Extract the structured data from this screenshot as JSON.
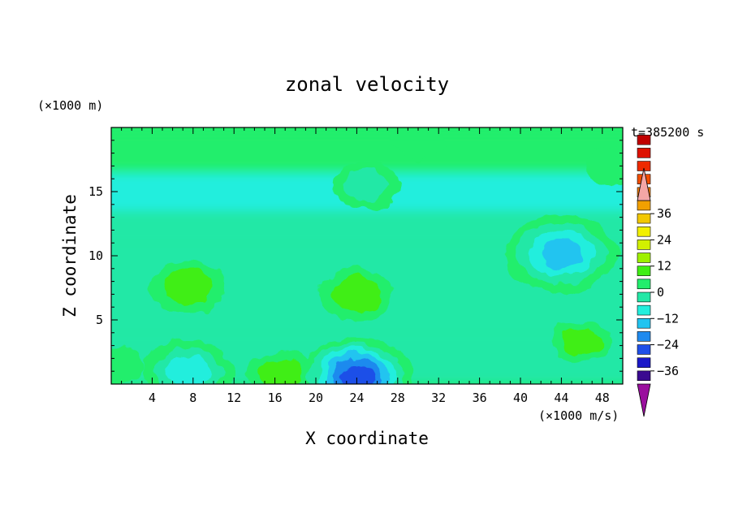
{
  "chart_data": {
    "type": "heatmap",
    "title": "zonal velocity",
    "xlabel": "X coordinate",
    "ylabel": "Z coordinate",
    "y_unit": "(×1000 m)",
    "colorbar_unit": "(×1000 m/s)",
    "time_label": "t=385200 s",
    "xlim": [
      0,
      50
    ],
    "ylim": [
      0,
      20
    ],
    "x_ticks": [
      4,
      8,
      12,
      16,
      20,
      24,
      28,
      32,
      36,
      40,
      44,
      48
    ],
    "y_ticks": [
      5,
      10,
      15
    ],
    "grid": false,
    "legend": "right colorbar",
    "colorbar": {
      "range": [
        -42,
        42
      ],
      "step": 6,
      "tick_values": [
        36,
        24,
        12,
        0,
        -12,
        -24,
        -36
      ],
      "tick_labels": [
        "36",
        "24",
        "12",
        "0",
        "−12",
        "−24",
        "−36"
      ],
      "colors": [
        "#7a00a0",
        "#3a0a90",
        "#1a18c8",
        "#1f4fe8",
        "#1f8aee",
        "#22c4f0",
        "#22eedd",
        "#22e8a6",
        "#22ee6c",
        "#40ee14",
        "#9ef000",
        "#d2f000",
        "#f2f000",
        "#f2c800",
        "#f2a000",
        "#f27a00",
        "#f24e00",
        "#ee2a00",
        "#dd1100",
        "#c00000",
        "#f4a6a6"
      ],
      "under_color": "#9a109e",
      "over_color": "#f4a6a6"
    },
    "features": [
      {
        "x": 7.5,
        "z": 7.5,
        "value": 10
      },
      {
        "x": 24,
        "z": 7,
        "value": 10
      },
      {
        "x": 16.5,
        "z": 0.7,
        "value": 8
      },
      {
        "x": 7.5,
        "z": 1.0,
        "value": -14
      },
      {
        "x": 24,
        "z": 0.6,
        "value": -30
      },
      {
        "x": 44,
        "z": 10.2,
        "value": -20
      },
      {
        "x": 46,
        "z": 3.3,
        "value": 6
      },
      {
        "x": 30,
        "z": 19,
        "value": 4
      },
      {
        "x": 25,
        "z": 15.5,
        "value": -8
      },
      {
        "x": 0.5,
        "z": 1.5,
        "value": 4
      },
      {
        "x": 49,
        "z": 17,
        "value": 4
      }
    ]
  }
}
